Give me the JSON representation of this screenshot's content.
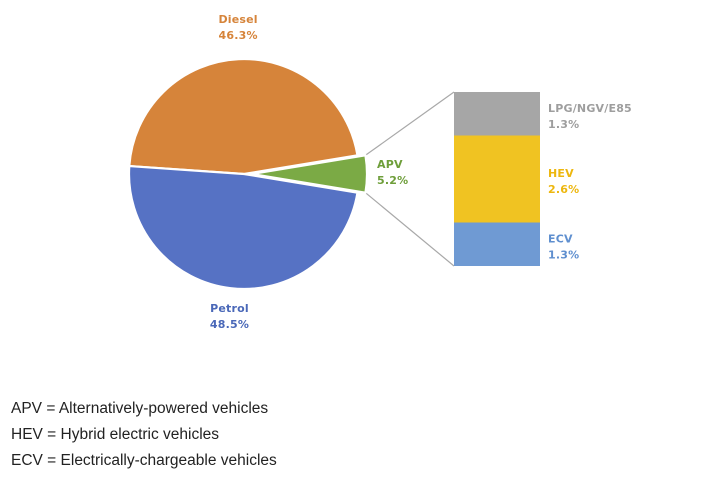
{
  "chart_data": {
    "type": "pie",
    "pie": {
      "slices": [
        {
          "label": "Diesel",
          "value": 46.3,
          "value_label": "46.3%",
          "color": "#D6843A",
          "label_color": "#D6843A"
        },
        {
          "label": "APV",
          "value": 5.2,
          "value_label": "5.2%",
          "color": "#7BAA45",
          "label_color": "#6E9E3A",
          "exploded": true
        },
        {
          "label": "Petrol",
          "value": 48.5,
          "value_label": "48.5%",
          "color": "#5672C4",
          "label_color": "#4A68B8"
        }
      ]
    },
    "breakdown_of": "APV",
    "stacked_bar": {
      "segments": [
        {
          "label": "ECV",
          "value": 1.3,
          "value_label": "1.3%",
          "color": "#6F9AD3",
          "label_color": "#5F8FCF"
        },
        {
          "label": "HEV",
          "value": 2.6,
          "value_label": "2.6%",
          "color": "#F0C322",
          "label_color": "#EDB70F"
        },
        {
          "label": "LPG/NGV/E85",
          "value": 1.3,
          "value_label": "1.3%",
          "color": "#A6A6A6",
          "label_color": "#9E9E9E"
        }
      ]
    },
    "connector_color": "#A8A8A8"
  },
  "notes": [
    "APV = Alternatively-powered vehicles",
    "HEV = Hybrid electric vehicles",
    "ECV = Electrically-chargeable vehicles"
  ]
}
